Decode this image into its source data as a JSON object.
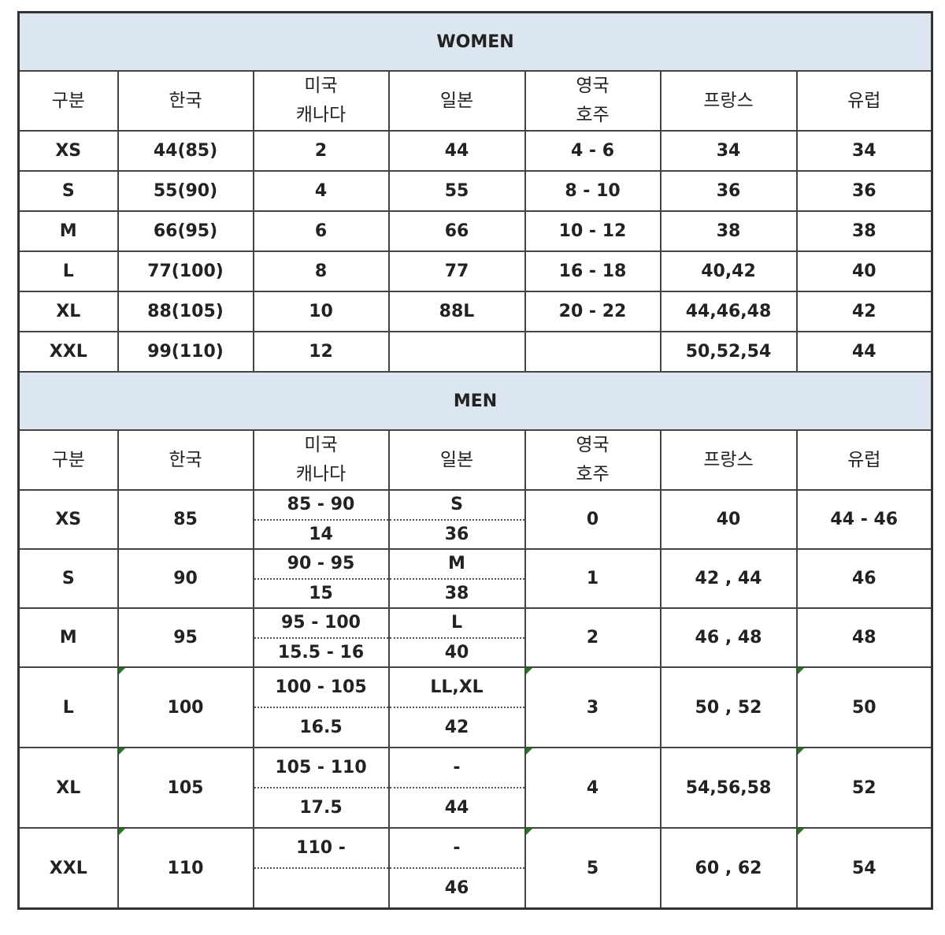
{
  "headers": [
    "구분",
    "한국",
    "미국\n캐나다",
    "일본",
    "영국\n호주",
    "프랑스",
    "유럽"
  ],
  "women": {
    "title": "WOMEN",
    "rows": [
      [
        "XS",
        "44(85)",
        "2",
        "44",
        "4 - 6",
        "34",
        "34"
      ],
      [
        "S",
        "55(90)",
        "4",
        "55",
        "8 - 10",
        "36",
        "36"
      ],
      [
        "M",
        "66(95)",
        "6",
        "66",
        "10 - 12",
        "38",
        "38"
      ],
      [
        "L",
        "77(100)",
        "8",
        "77",
        "16 - 18",
        "40,42",
        "40"
      ],
      [
        "XL",
        "88(105)",
        "10",
        "88L",
        "20 - 22",
        "44,46,48",
        "42"
      ],
      [
        "XXL",
        "99(110)",
        "12",
        "",
        "",
        "50,52,54",
        "44"
      ]
    ]
  },
  "men": {
    "title": "MEN",
    "rows": [
      {
        "size": "XS",
        "kr": "85",
        "us": [
          "85 - 90",
          "14"
        ],
        "jp": [
          "S",
          "36"
        ],
        "uk": "0",
        "fr": "40",
        "eu": "44 - 46",
        "marked": false
      },
      {
        "size": "S",
        "kr": "90",
        "us": [
          "90 - 95",
          "15"
        ],
        "jp": [
          "M",
          "38"
        ],
        "uk": "1",
        "fr": "42 , 44",
        "eu": "46",
        "marked": false
      },
      {
        "size": "M",
        "kr": "95",
        "us": [
          "95 - 100",
          "15.5 - 16"
        ],
        "jp": [
          "L",
          "40"
        ],
        "uk": "2",
        "fr": "46 , 48",
        "eu": "48",
        "marked": false
      },
      {
        "size": "L",
        "kr": "100",
        "us": [
          "100 - 105",
          "16.5"
        ],
        "jp": [
          "LL,XL",
          "42"
        ],
        "uk": "3",
        "fr": "50 , 52",
        "eu": "50",
        "marked": true
      },
      {
        "size": "XL",
        "kr": "105",
        "us": [
          "105 - 110",
          "17.5"
        ],
        "jp": [
          "-",
          "44"
        ],
        "uk": "4",
        "fr": "54,56,58",
        "eu": "52",
        "marked": true
      },
      {
        "size": "XXL",
        "kr": "110",
        "us": [
          "110 -",
          ""
        ],
        "jp": [
          "-",
          "46"
        ],
        "uk": "5",
        "fr": "60 , 62",
        "eu": "54",
        "marked": true
      }
    ]
  },
  "colors": {
    "section_header_bg": "#dce6f1",
    "comment_marker": "#1e7a1e"
  }
}
